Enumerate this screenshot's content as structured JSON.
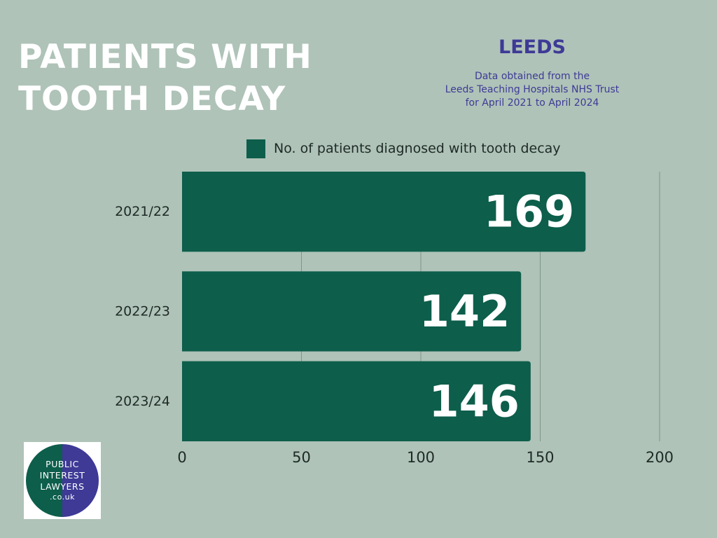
{
  "header": {
    "title_lines": [
      "PATIENTS WITH",
      "TOOTH DECAY"
    ],
    "city": "LEEDS",
    "source_lines": [
      "Data obtained from the",
      "Leeds Teaching Hospitals NHS Trust",
      "for April 2021 to April 2024"
    ]
  },
  "colors": {
    "background": "#afc3b8",
    "bar": "#0d5e4b",
    "gridline": "#7f968a",
    "title_text": "#ffffff",
    "accent_text": "#3e3a96",
    "logo_green": "#0d5e4b",
    "logo_purple": "#3e3a96"
  },
  "chart_data": {
    "type": "bar",
    "orientation": "horizontal",
    "categories": [
      "2021/22",
      "2022/23",
      "2023/24"
    ],
    "series": [
      {
        "name": "No. of patients diagnosed with tooth decay",
        "values": [
          169,
          142,
          146
        ]
      }
    ],
    "data_labels": [
      "169",
      "142",
      "146"
    ],
    "xlim": [
      0,
      200
    ],
    "x_ticks": [
      0,
      50,
      100,
      150,
      200
    ],
    "xlabel": "",
    "ylabel": "",
    "grid": true,
    "legend_position": "top"
  },
  "logo": {
    "lines": [
      "PUBLIC",
      "INTEREST",
      "LAWYERS",
      ".co.uk"
    ],
    "icon": "public-interest-lawyers-logo"
  }
}
